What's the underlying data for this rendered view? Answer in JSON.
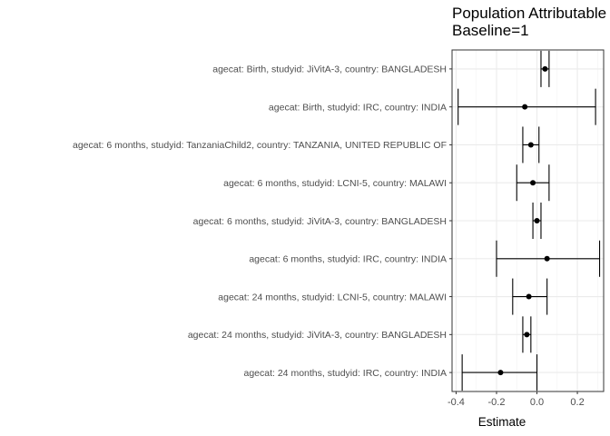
{
  "chart_data": {
    "type": "forest",
    "title_lines": [
      "Population Attributable",
      "Baseline=1"
    ],
    "xlabel": "Estimate",
    "ylabel": "",
    "xlim": [
      -0.42,
      0.33
    ],
    "xticks": [
      -0.4,
      -0.2,
      0.0,
      0.2
    ],
    "xtick_labels": [
      "-0.4",
      "-0.2",
      "0.0",
      "0.2"
    ],
    "grid": true,
    "theme": "bw",
    "rows": [
      {
        "label": "agecat: Birth, studyid: JiVitA-3, country: BANGLADESH",
        "estimate": 0.04,
        "lower": 0.02,
        "upper": 0.06
      },
      {
        "label": "agecat: Birth, studyid: IRC, country: INDIA",
        "estimate": -0.06,
        "lower": -0.39,
        "upper": 0.29
      },
      {
        "label": "agecat: 6 months, studyid: TanzaniaChild2, country: TANZANIA, UNITED REPUBLIC OF",
        "estimate": -0.03,
        "lower": -0.07,
        "upper": 0.01
      },
      {
        "label": "agecat: 6 months, studyid: LCNI-5, country: MALAWI",
        "estimate": -0.02,
        "lower": -0.1,
        "upper": 0.06
      },
      {
        "label": "agecat: 6 months, studyid: JiVitA-3, country: BANGLADESH",
        "estimate": 0.0,
        "lower": -0.02,
        "upper": 0.02
      },
      {
        "label": "agecat: 6 months, studyid: IRC, country: INDIA",
        "estimate": 0.05,
        "lower": -0.2,
        "upper": 0.31
      },
      {
        "label": "agecat: 24 months, studyid: LCNI-5, country: MALAWI",
        "estimate": -0.04,
        "lower": -0.12,
        "upper": 0.05
      },
      {
        "label": "agecat: 24 months, studyid: JiVitA-3, country: BANGLADESH",
        "estimate": -0.05,
        "lower": -0.07,
        "upper": -0.03
      },
      {
        "label": "agecat: 24 months, studyid: IRC, country: INDIA",
        "estimate": -0.18,
        "lower": -0.37,
        "upper": 0.0
      }
    ]
  }
}
